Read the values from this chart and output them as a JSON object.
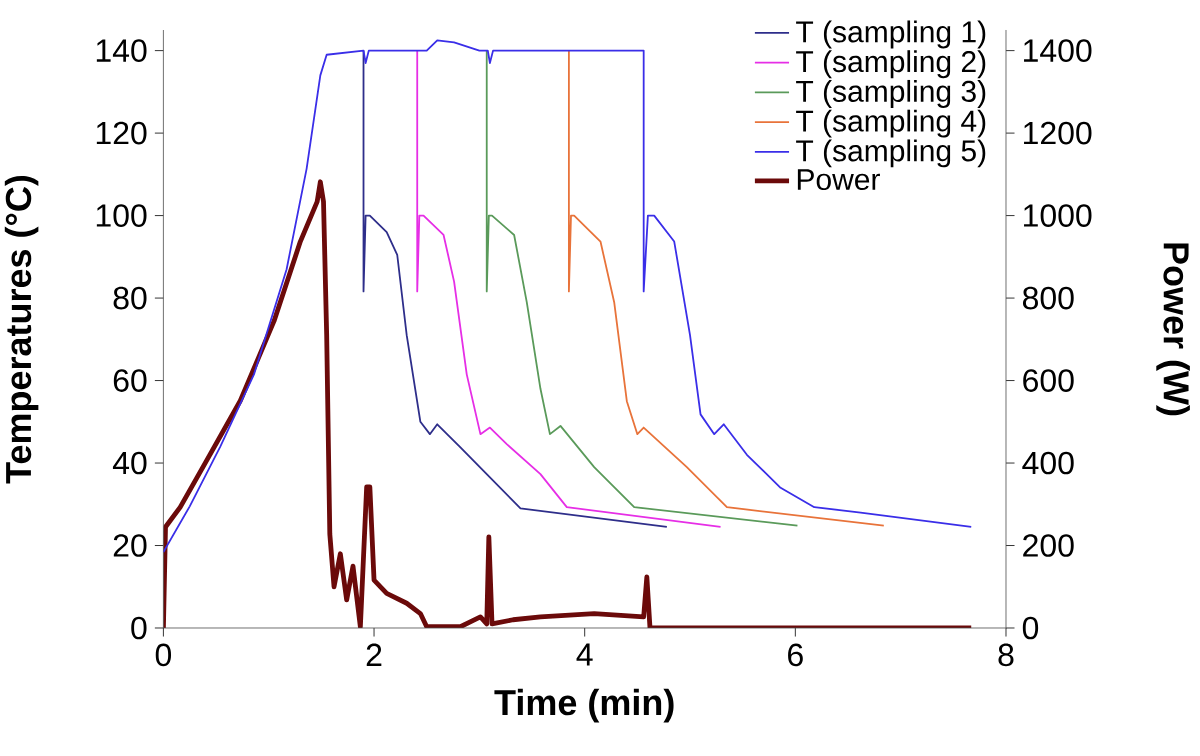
{
  "chart_data": {
    "type": "line",
    "xlabel": "Time (min)",
    "ylabel": "Temperatures (°C)",
    "y2label": "Power (W)",
    "xlim": [
      0,
      8
    ],
    "xticks": [
      0,
      2,
      4,
      6,
      8
    ],
    "ylim": [
      0,
      145
    ],
    "yticks": [
      0,
      20,
      40,
      60,
      80,
      100,
      120,
      140
    ],
    "y2lim": [
      0,
      1450
    ],
    "y2ticks": [
      0,
      200,
      400,
      600,
      800,
      1000,
      1200,
      1400
    ],
    "legend": "top right",
    "series": [
      {
        "name": "T (sampling 1)",
        "color": "#2e2e8a",
        "x": [
          1.9,
          1.9,
          1.92,
          1.96,
          2.12,
          2.22,
          2.31,
          2.44,
          2.53,
          2.6,
          2.82,
          3.07,
          3.39,
          4.78
        ],
        "values": [
          140,
          81.6,
          100,
          100,
          96,
          90.5,
          71,
          50,
          47,
          49.4,
          43.8,
          37.3,
          29,
          24.5
        ]
      },
      {
        "name": "T (sampling 2)",
        "color": "#e62ee6",
        "x": [
          2.41,
          2.41,
          2.43,
          2.47,
          2.66,
          2.76,
          2.88,
          3.01,
          3.1,
          3.26,
          3.58,
          3.83,
          5.29
        ],
        "values": [
          140,
          81.6,
          100,
          100,
          95.3,
          84,
          61.5,
          47,
          48.6,
          44.6,
          37.3,
          29.3,
          24.5
        ]
      },
      {
        "name": "T (sampling 3)",
        "color": "#5a9a5a",
        "x": [
          3.07,
          3.07,
          3.09,
          3.12,
          3.33,
          3.45,
          3.58,
          3.67,
          3.77,
          4.09,
          4.47,
          6.02
        ],
        "values": [
          140,
          81.6,
          100,
          100,
          95.3,
          79,
          58,
          47,
          49,
          39,
          29.3,
          24.8
        ]
      },
      {
        "name": "T (sampling 4)",
        "color": "#e8733a",
        "x": [
          3.85,
          3.85,
          3.87,
          3.9,
          4.15,
          4.28,
          4.4,
          4.5,
          4.56,
          4.97,
          5.35,
          6.84
        ],
        "values": [
          140,
          81.6,
          100,
          100,
          93.7,
          79,
          55,
          47,
          48.6,
          39,
          29.3,
          24.8
        ]
      },
      {
        "name": "T (sampling 5)",
        "color": "#3a2ee8",
        "x": [
          0,
          0.25,
          0.54,
          0.86,
          1.17,
          1.36,
          1.49,
          1.55,
          1.9,
          1.92,
          1.95,
          2.5,
          2.6,
          2.76,
          3.0,
          3.08,
          3.1,
          3.13,
          4.56,
          4.56,
          4.6,
          4.66,
          4.85,
          5.0,
          5.1,
          5.23,
          5.32,
          5.54,
          5.86,
          6.18,
          6.62,
          7.67
        ],
        "values": [
          18.4,
          29.5,
          44,
          61.5,
          87,
          111.4,
          134,
          139,
          140,
          137,
          140,
          140,
          142.5,
          142,
          140,
          140,
          137,
          140,
          140,
          81.6,
          100,
          100,
          93.7,
          71,
          51.8,
          47,
          49.4,
          42,
          34,
          29.3,
          28,
          24.5
        ]
      },
      {
        "name": "Power",
        "color": "#6b0a0a",
        "axis": "y2",
        "x": [
          0,
          0.02,
          0.16,
          0.41,
          0.73,
          1.05,
          1.3,
          1.46,
          1.49,
          1.52,
          1.55,
          1.58,
          1.62,
          1.68,
          1.74,
          1.8,
          1.87,
          1.93,
          1.96,
          2.0,
          2.12,
          2.31,
          2.44,
          2.5,
          2.82,
          3.01,
          3.07,
          3.09,
          3.12,
          3.32,
          3.58,
          4.09,
          4.56,
          4.59,
          4.62,
          7.67
        ],
        "values": [
          0,
          245,
          293,
          406,
          551,
          744,
          937,
          1034,
          1082,
          1034,
          712,
          228,
          100,
          180,
          68,
          150,
          3,
          342,
          342,
          116,
          84,
          60,
          35,
          3,
          3,
          27,
          10,
          221,
          10,
          20,
          27,
          35,
          27,
          124,
          0,
          0
        ]
      }
    ]
  }
}
